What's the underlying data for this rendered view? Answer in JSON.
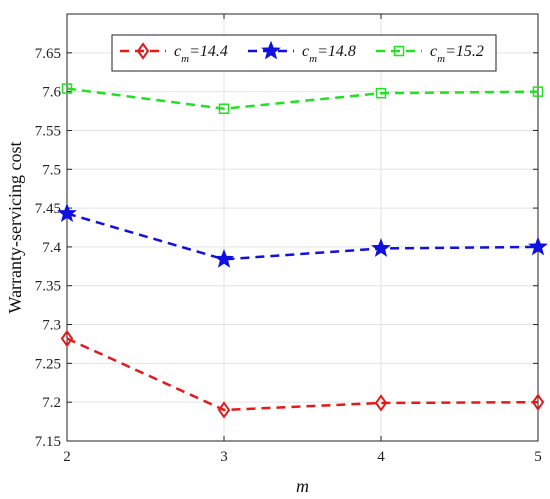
{
  "chart_data": {
    "type": "line",
    "xlabel": "m",
    "ylabel": "Warranty-servicing cost",
    "x": [
      2,
      3,
      4,
      5
    ],
    "xlim": [
      2,
      5
    ],
    "ylim": [
      7.15,
      7.7
    ],
    "xticks": [
      "2",
      "3",
      "4",
      "5"
    ],
    "yticks": [
      "7.15",
      "7.2",
      "7.25",
      "7.3",
      "7.35",
      "7.4",
      "7.45",
      "7.5",
      "7.55",
      "7.6",
      "7.65"
    ],
    "grid": true,
    "legend_position": "top",
    "series": [
      {
        "name": "c_m=14.4",
        "legend_symbol": "c",
        "legend_sub": "m",
        "legend_value": "=14.4",
        "color": "#e31a1c",
        "marker": "diamond",
        "values": [
          7.282,
          7.19,
          7.199,
          7.2
        ]
      },
      {
        "name": "c_m=14.8",
        "legend_symbol": "c",
        "legend_sub": "m",
        "legend_value": "=14.8",
        "color": "#1010e0",
        "marker": "star",
        "values": [
          7.443,
          7.384,
          7.398,
          7.4
        ]
      },
      {
        "name": "c_m=15.2",
        "legend_symbol": "c",
        "legend_sub": "m",
        "legend_value": "=15.2",
        "color": "#22e022",
        "marker": "square",
        "values": [
          7.604,
          7.578,
          7.598,
          7.6
        ]
      }
    ]
  }
}
